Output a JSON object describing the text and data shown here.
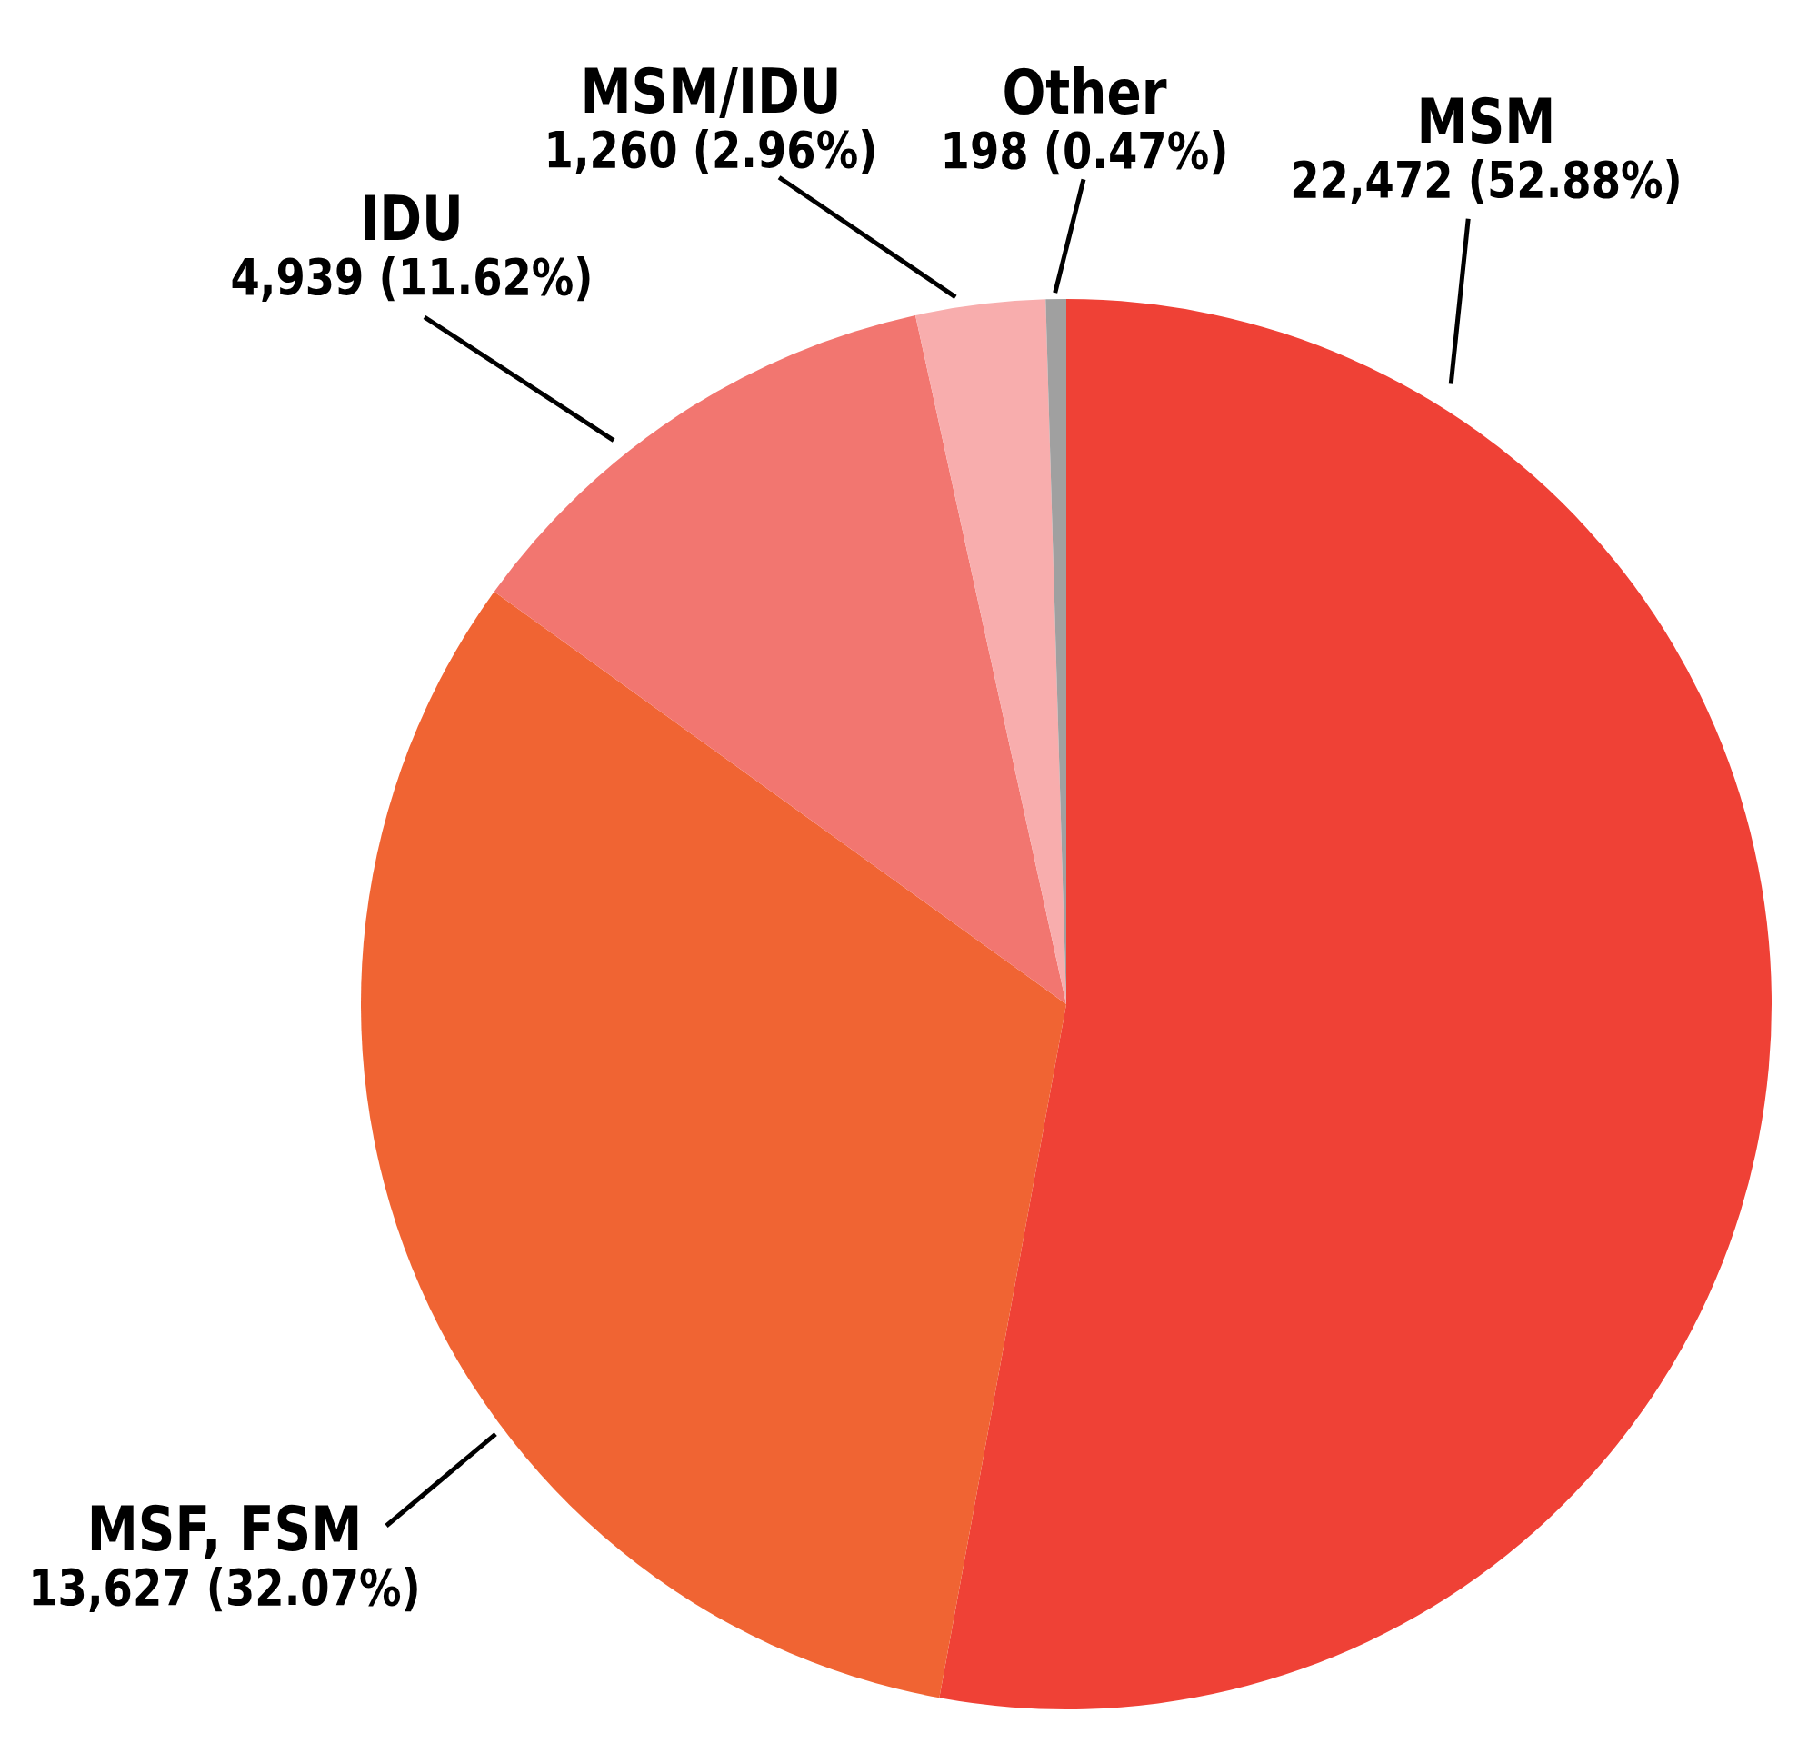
{
  "chart_data": {
    "type": "pie",
    "categories": [
      "MSM",
      "MSF, FSM",
      "IDU",
      "MSM/IDU",
      "Other"
    ],
    "values": [
      22472,
      13627,
      4939,
      1260,
      198
    ],
    "colors": [
      "#ef4136",
      "#f06433",
      "#f27670",
      "#f8adad",
      "#a0a0a0"
    ],
    "value_labels": [
      "22,472 (52.88%)",
      "13,627 (32.07%)",
      "4,939 (11.62%)",
      "1,260 (2.96%)",
      "198 (0.47%)"
    ]
  }
}
